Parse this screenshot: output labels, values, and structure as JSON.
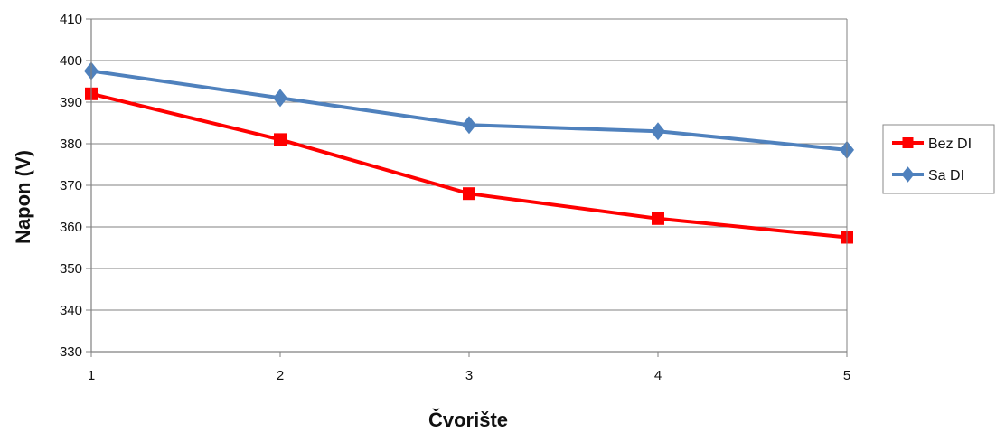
{
  "chart_data": {
    "type": "line",
    "xlabel": "Čvorište",
    "ylabel": "Napon (V)",
    "x": [
      1,
      2,
      3,
      4,
      5
    ],
    "ylim": [
      330,
      410
    ],
    "yticks": [
      330,
      340,
      350,
      360,
      370,
      380,
      390,
      400,
      410
    ],
    "grid": true,
    "legend_position": "right",
    "series": [
      {
        "name": "Bez DI",
        "color": "#ff0000",
        "marker": "square",
        "values": [
          392,
          381,
          368,
          362,
          357.5
        ]
      },
      {
        "name": "Sa DI",
        "color": "#4f81bd",
        "marker": "diamond",
        "values": [
          397.5,
          391,
          384.5,
          383,
          378.5
        ]
      }
    ]
  }
}
